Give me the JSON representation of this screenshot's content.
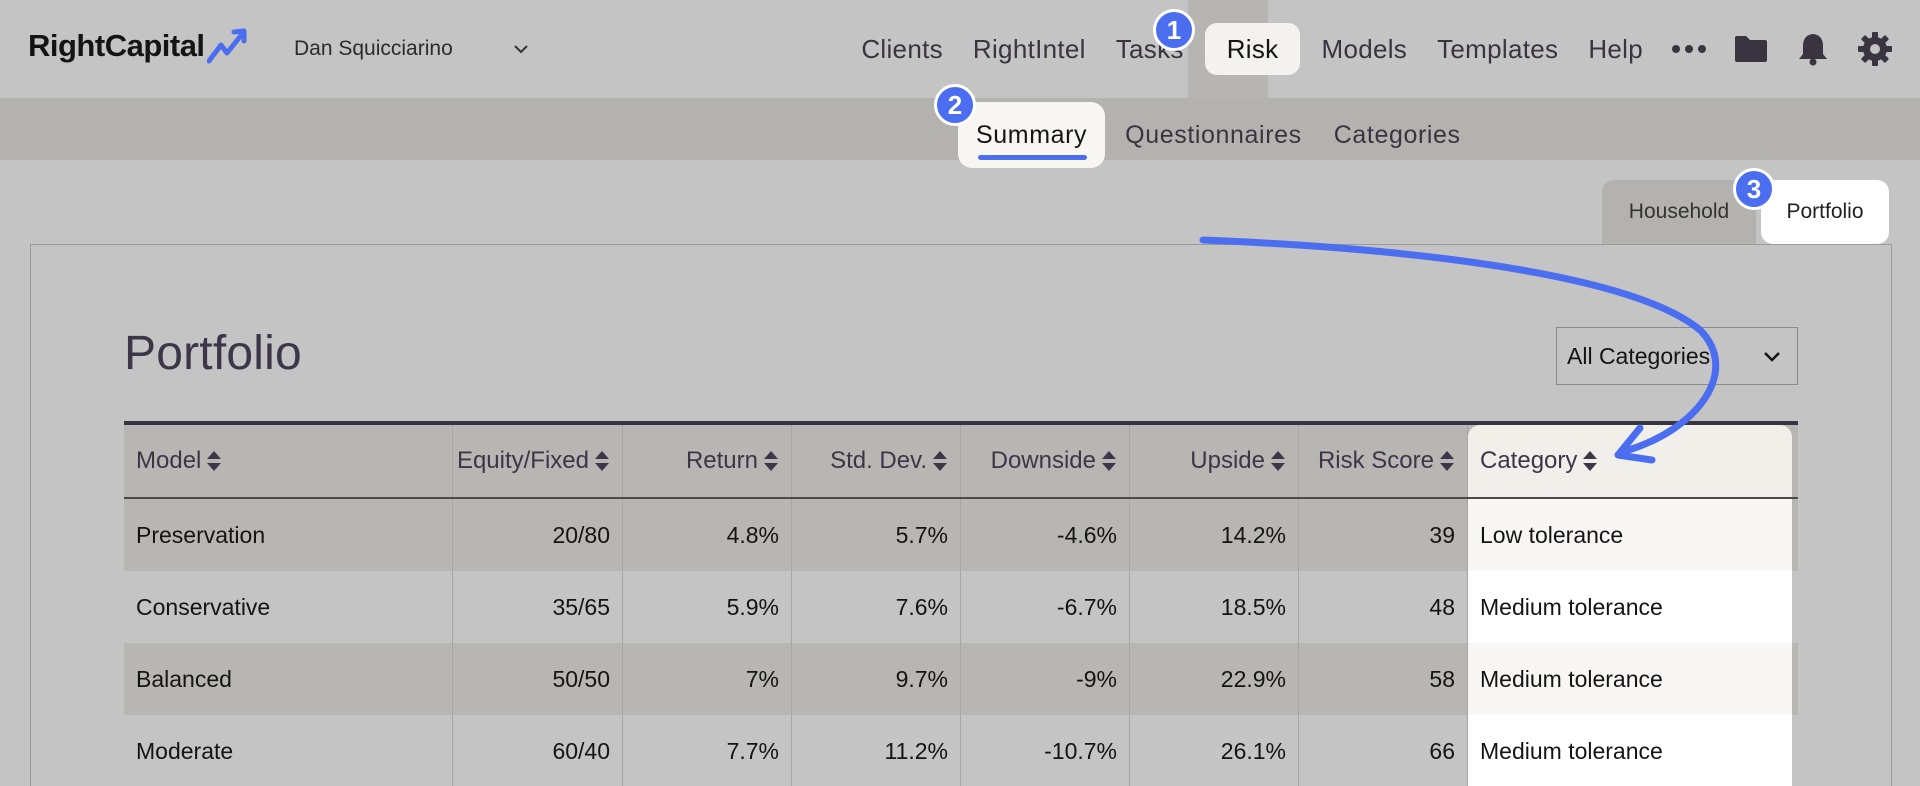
{
  "header": {
    "logo_text": "RightCapital",
    "user_name": "Dan Squicciarino",
    "nav": [
      "Clients",
      "RightIntel",
      "Tasks",
      "Risk",
      "Models",
      "Templates",
      "Help"
    ],
    "icons": [
      "more-icon",
      "folder-icon",
      "bell-icon",
      "gear-icon"
    ]
  },
  "subnav": [
    "Summary",
    "Questionnaires",
    "Categories"
  ],
  "toggle": {
    "household": "Household",
    "portfolio": "Portfolio"
  },
  "page": {
    "title": "Portfolio",
    "category_select": "All Categories"
  },
  "table": {
    "columns": [
      "Model",
      "Equity/Fixed",
      "Return",
      "Std. Dev.",
      "Downside",
      "Upside",
      "Risk Score",
      "Category"
    ],
    "rows": [
      [
        "Preservation",
        "20/80",
        "4.8%",
        "5.7%",
        "-4.6%",
        "14.2%",
        "39",
        "Low tolerance"
      ],
      [
        "Conservative",
        "35/65",
        "5.9%",
        "7.6%",
        "-6.7%",
        "18.5%",
        "48",
        "Medium tolerance"
      ],
      [
        "Balanced",
        "50/50",
        "7%",
        "9.7%",
        "-9%",
        "22.9%",
        "58",
        "Medium tolerance"
      ],
      [
        "Moderate",
        "60/40",
        "7.7%",
        "11.2%",
        "-10.7%",
        "26.1%",
        "66",
        "Medium tolerance"
      ]
    ]
  },
  "badges": [
    "1",
    "2",
    "3"
  ],
  "colors": {
    "accent": "#4b6ef0",
    "title": "#3d3548",
    "background": "#c4c4c4"
  }
}
